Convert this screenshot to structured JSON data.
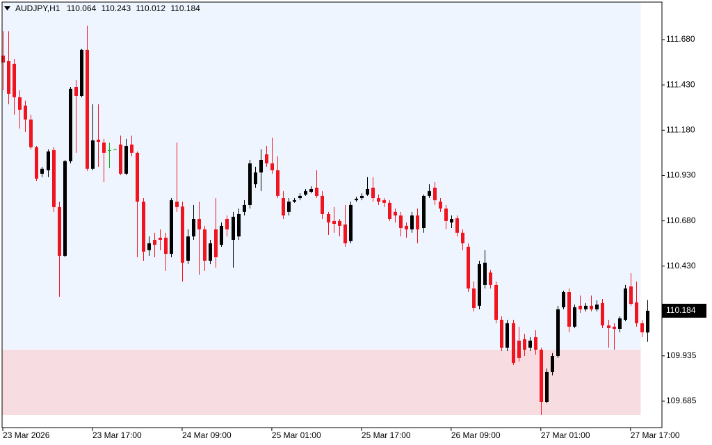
{
  "chart_data": {
    "type": "candlestick",
    "symbol": "AUDJPY,H1",
    "open": [
      111.592,
      111.561,
      111.546,
      111.362,
      111.316,
      111.239,
      111.086,
      110.94,
      110.959,
      111.07,
      110.756,
      110.487,
      111.009,
      111.419,
      111.369,
      111.623,
      110.967,
      111.128,
      111.112,
      111.07,
      111.074,
      111.101,
      110.94,
      111.101,
      111.055,
      110.786,
      110.518,
      110.575,
      110.587,
      110.587,
      110.498,
      110.786,
      110.759,
      110.46,
      110.594,
      110.69,
      110.633,
      110.46,
      110.633,
      110.548,
      110.69,
      110.575,
      110.594,
      110.729,
      110.767,
      110.882,
      110.947,
      111.047,
      110.997,
      110.959,
      110.805,
      110.729,
      110.786,
      110.805,
      110.825,
      110.84,
      110.863,
      110.817,
      110.717,
      110.679,
      110.679,
      110.66,
      110.568,
      110.794,
      110.805,
      110.825,
      110.863,
      110.805,
      110.794,
      110.779,
      110.729,
      110.71,
      110.652,
      110.633,
      110.71,
      110.64,
      110.817,
      110.863,
      110.786,
      110.748,
      110.671,
      110.694,
      110.614,
      110.537,
      110.307,
      110.211,
      110.326,
      110.395,
      110.326,
      110.134,
      109.98,
      110.115,
      110.019,
      110.027,
      109.98,
      110.038,
      109.969,
      109.681,
      109.846,
      109.934,
      110.203,
      110.287,
      110.096,
      110.211,
      110.192,
      110.211,
      110.192,
      110.226,
      110.103,
      110.096,
      110.084,
      110.134,
      110.318,
      110.23,
      110.115,
      110.064
    ],
    "high": [
      111.726,
      111.726,
      111.573,
      111.4,
      111.343,
      111.266,
      111.093,
      110.978,
      111.074,
      111.086,
      110.786,
      111.016,
      111.419,
      111.458,
      111.63,
      111.757,
      111.323,
      111.323,
      111.132,
      111.112,
      111.078,
      111.151,
      111.132,
      111.151,
      111.063,
      110.805,
      110.594,
      110.614,
      110.633,
      110.614,
      110.805,
      111.112,
      110.786,
      110.633,
      110.767,
      110.786,
      110.652,
      110.575,
      110.805,
      110.671,
      110.71,
      110.729,
      110.748,
      110.794,
      111.016,
      110.978,
      111.074,
      111.093,
      111.139,
      111.036,
      110.844,
      110.805,
      110.805,
      110.832,
      110.855,
      110.871,
      110.959,
      110.844,
      110.729,
      110.756,
      110.69,
      110.767,
      110.786,
      110.813,
      110.832,
      110.921,
      110.921,
      110.825,
      110.805,
      110.794,
      110.748,
      110.729,
      110.671,
      110.729,
      110.748,
      110.825,
      110.882,
      110.894,
      110.805,
      110.767,
      110.71,
      110.71,
      110.633,
      110.556,
      110.345,
      110.46,
      110.518,
      110.41,
      110.345,
      110.153,
      110.134,
      110.134,
      110.096,
      110.057,
      110.038,
      110.076,
      109.98,
      109.865,
      109.95,
      110.211,
      110.295,
      110.307,
      110.218,
      110.268,
      110.226,
      110.268,
      110.241,
      110.249,
      110.134,
      110.115,
      110.153,
      110.326,
      110.391,
      110.345,
      110.134,
      110.243
    ],
    "low": [
      111.4,
      111.323,
      111.266,
      111.189,
      111.17,
      111.074,
      110.901,
      110.921,
      110.921,
      110.729,
      110.261,
      110.479,
      110.997,
      111.055,
      111.362,
      110.955,
      110.959,
      110.978,
      110.894,
      110.97,
      111.07,
      110.932,
      110.932,
      111.036,
      110.479,
      110.46,
      110.487,
      110.479,
      110.518,
      110.403,
      110.479,
      110.729,
      110.345,
      110.441,
      110.575,
      110.383,
      110.403,
      110.441,
      110.422,
      110.537,
      110.594,
      110.422,
      110.575,
      110.71,
      110.748,
      110.863,
      110.844,
      110.978,
      110.94,
      110.805,
      110.69,
      110.71,
      110.779,
      110.794,
      110.817,
      110.832,
      110.805,
      110.69,
      110.602,
      110.614,
      110.594,
      110.537,
      110.556,
      110.786,
      110.794,
      110.817,
      110.786,
      110.767,
      110.756,
      110.679,
      110.671,
      110.594,
      110.587,
      110.614,
      110.556,
      110.614,
      110.805,
      110.767,
      110.729,
      110.633,
      110.64,
      110.594,
      110.518,
      110.287,
      110.18,
      110.192,
      110.307,
      110.307,
      110.115,
      109.961,
      109.961,
      109.885,
      109.904,
      109.934,
      109.961,
      109.942,
      109.608,
      109.674,
      109.827,
      109.923,
      110.192,
      110.065,
      110.088,
      110.172,
      110.18,
      110.18,
      110.18,
      110.088,
      109.98,
      109.969,
      110.065,
      110.126,
      110.211,
      110.096,
      110.038,
      110.012
    ],
    "close": [
      111.554,
      111.381,
      111.362,
      111.293,
      111.239,
      111.086,
      110.913,
      110.967,
      111.063,
      110.756,
      110.487,
      111.009,
      111.408,
      111.369,
      111.623,
      110.967,
      111.124,
      111.116,
      111.055,
      111.07,
      111.074,
      110.94,
      111.093,
      111.055,
      110.786,
      110.51,
      110.556,
      110.548,
      110.575,
      110.498,
      110.794,
      110.756,
      110.449,
      110.594,
      110.69,
      110.633,
      110.46,
      110.556,
      110.479,
      110.652,
      110.633,
      110.702,
      110.717,
      110.767,
      110.997,
      110.947,
      111.016,
      110.997,
      110.959,
      110.817,
      110.71,
      110.786,
      110.794,
      110.817,
      110.844,
      110.855,
      110.817,
      110.717,
      110.671,
      110.663,
      110.652,
      110.556,
      110.767,
      110.802,
      110.817,
      110.855,
      110.805,
      110.786,
      110.779,
      110.69,
      110.71,
      110.64,
      110.633,
      110.71,
      110.633,
      110.817,
      110.844,
      110.794,
      110.748,
      110.679,
      110.69,
      110.614,
      110.556,
      110.307,
      110.199,
      110.441,
      110.449,
      110.326,
      110.134,
      109.98,
      110.115,
      109.896,
      109.923,
      109.969,
      110.019,
      109.969,
      109.681,
      109.846,
      109.934,
      110.192,
      110.287,
      110.096,
      110.203,
      110.192,
      110.211,
      110.192,
      110.218,
      110.103,
      110.088,
      110.084,
      110.142,
      110.307,
      110.222,
      110.115,
      110.065,
      110.184
    ],
    "bull_color": "#000000",
    "bear_color": "#f0141e",
    "doji_color": "#19b319",
    "zones": [
      {
        "low": 109.969,
        "high": 111.887,
        "color": "#eef5fe"
      },
      {
        "low": 109.608,
        "high": 109.969,
        "color": "#f7dde1"
      }
    ],
    "xlim": [
      -0.5,
      115.5
    ],
    "xticks": [
      {
        "value": 0,
        "label": "23 Mar 2026"
      },
      {
        "value": 16,
        "label": "23 Mar 17:00"
      },
      {
        "value": 32,
        "label": "24 Mar 09:00"
      },
      {
        "value": 48,
        "label": "25 Mar 01:00"
      },
      {
        "value": 64,
        "label": "25 Mar 17:00"
      },
      {
        "value": 80,
        "label": "26 Mar 09:00"
      },
      {
        "value": 96,
        "label": "27 Mar 01:00"
      },
      {
        "value": 112,
        "label": "27 Mar 17:00"
      }
    ],
    "ylim": [
      109.539,
      111.887
    ],
    "yticks": [
      {
        "value": 111.68,
        "label": "111.680"
      },
      {
        "value": 111.43,
        "label": "111.430"
      },
      {
        "value": 111.18,
        "label": "111.180"
      },
      {
        "value": 110.93,
        "label": "110.930"
      },
      {
        "value": 110.68,
        "label": "110.680"
      },
      {
        "value": 110.43,
        "label": "110.430"
      },
      {
        "value": 109.935,
        "label": "109.935"
      },
      {
        "value": 109.685,
        "label": "109.685"
      }
    ],
    "grid": false
  }
}
